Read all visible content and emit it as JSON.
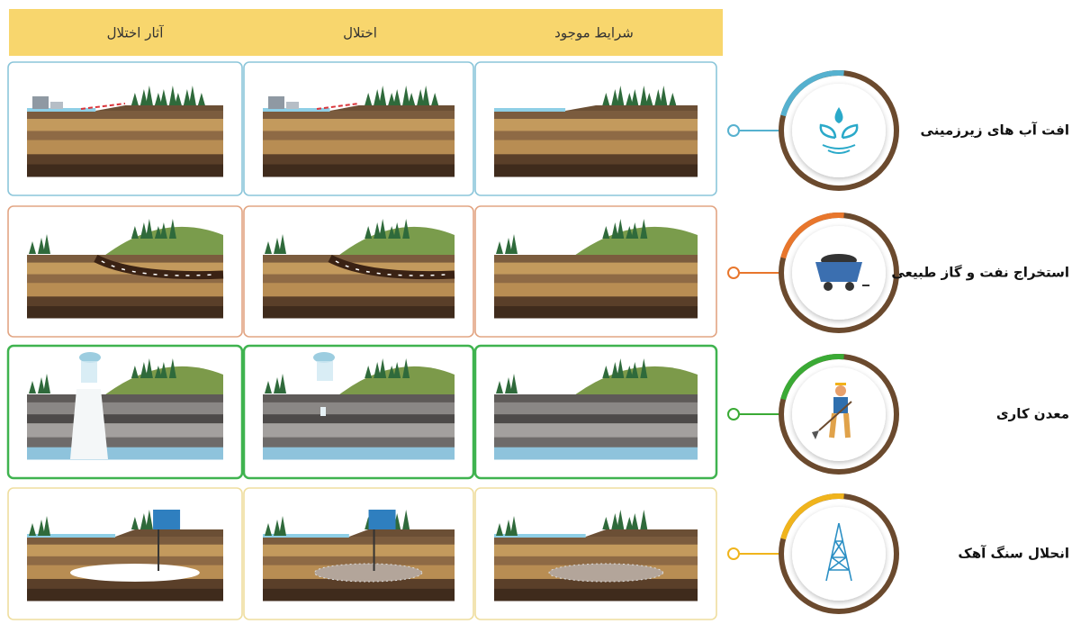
{
  "header": {
    "columns": [
      "آثار اختلال",
      "اختلال",
      "شرایط موجود"
    ]
  },
  "rows": [
    {
      "label": "افت آب های زیرزمینی"
    },
    {
      "label": "استخراج نفت و گاز طبیعی"
    },
    {
      "label": "معدن کاری"
    },
    {
      "label": "انحلال سنگ آهک"
    }
  ]
}
